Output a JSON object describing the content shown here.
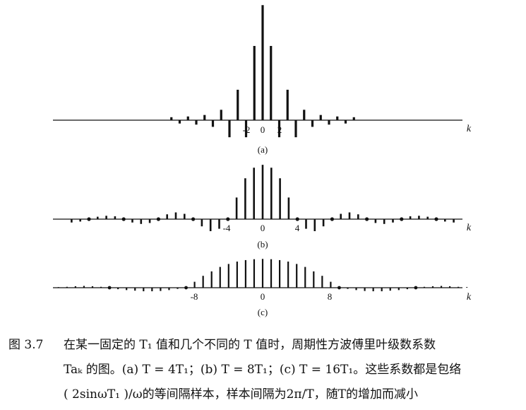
{
  "chart_data": [
    {
      "type": "stem",
      "panel_label": "(a)",
      "k_label": "k",
      "tick_labels": [
        "-2",
        "0",
        "2"
      ],
      "k": [
        -11,
        -10,
        -9,
        -8,
        -7,
        -6,
        -5,
        -4,
        -3,
        -2,
        -1,
        0,
        1,
        2,
        3,
        4,
        5,
        6,
        7,
        8,
        9,
        10,
        11
      ],
      "values": [
        0.04,
        -0.045,
        0.05,
        -0.06,
        0.07,
        -0.09,
        0.14,
        -0.23,
        0.41,
        -0.23,
        1.0,
        1.55,
        1.0,
        -0.23,
        0.41,
        -0.23,
        0.14,
        -0.09,
        0.07,
        -0.06,
        0.05,
        -0.045,
        0.04
      ],
      "ylim": [
        -0.35,
        1.65
      ]
    },
    {
      "type": "stem",
      "panel_label": "(b)",
      "k_label": "k",
      "tick_labels": [
        "-4",
        "0",
        "4"
      ],
      "k": [
        -22,
        -21,
        -20,
        -19,
        -18,
        -17,
        -16,
        -15,
        -14,
        -13,
        -12,
        -11,
        -10,
        -9,
        -8,
        -7,
        -6,
        -5,
        -4,
        -3,
        -2,
        -1,
        0,
        1,
        2,
        3,
        4,
        5,
        6,
        7,
        8,
        9,
        10,
        11,
        12,
        13,
        14,
        15,
        16,
        17,
        18,
        19,
        20,
        21,
        22
      ],
      "values": [
        -0.07,
        -0.05,
        0,
        0.05,
        0.07,
        0.06,
        0,
        -0.07,
        -0.1,
        -0.08,
        0,
        0.1,
        0.14,
        0.11,
        0,
        -0.15,
        -0.25,
        -0.2,
        0,
        0.45,
        0.85,
        1.07,
        1.13,
        1.07,
        0.85,
        0.45,
        0,
        -0.2,
        -0.25,
        -0.15,
        0,
        0.11,
        0.14,
        0.1,
        0,
        -0.08,
        -0.1,
        -0.07,
        0,
        0.06,
        0.07,
        0.05,
        0,
        -0.05,
        -0.07
      ],
      "ylim": [
        -0.3,
        1.2
      ]
    },
    {
      "type": "stem",
      "panel_label": "(c)",
      "k_label": "k",
      "tick_labels": [
        "-8",
        "8"
      ],
      "k": [
        -24,
        -23,
        -22,
        -21,
        -20,
        -19,
        -18,
        -17,
        -16,
        -15,
        -14,
        -13,
        -12,
        -11,
        -10,
        -9,
        -8,
        -7,
        -6,
        -5,
        -4,
        -3,
        -2,
        -1,
        0,
        1,
        2,
        3,
        4,
        5,
        6,
        7,
        8,
        9,
        10,
        11,
        12,
        13,
        14,
        15,
        16,
        17,
        18,
        19,
        20,
        21,
        22,
        23,
        24
      ],
      "values": [
        0.02,
        0.03,
        0.05,
        0.06,
        0.05,
        0.03,
        0,
        -0.05,
        -0.08,
        -0.1,
        -0.12,
        -0.12,
        -0.11,
        -0.08,
        -0.04,
        0,
        0.2,
        0.4,
        0.55,
        0.7,
        0.8,
        0.88,
        0.93,
        0.96,
        0.97,
        0.96,
        0.93,
        0.88,
        0.8,
        0.7,
        0.55,
        0.4,
        0.2,
        0,
        -0.04,
        -0.08,
        -0.11,
        -0.12,
        -0.12,
        -0.1,
        -0.08,
        -0.05,
        0,
        0.03,
        0.05,
        0.06,
        0.05,
        0.03,
        0.02
      ],
      "zero_label": "0",
      "ylim": [
        -0.2,
        1.0
      ]
    }
  ],
  "caption": {
    "label": "图 3.7",
    "line1": "在某一固定的 T₁ 值和几个不同的 T 值时，周期性方波傅里叶级数系数",
    "line2": "Taₖ 的图。(a) T = 4T₁；(b) T = 8T₁；(c) T = 16T₁。这些系数都是包络",
    "line3": "( 2sinωT₁ )/ω的等间隔样本，样本间隔为2π/T，随T的增加而减小"
  }
}
